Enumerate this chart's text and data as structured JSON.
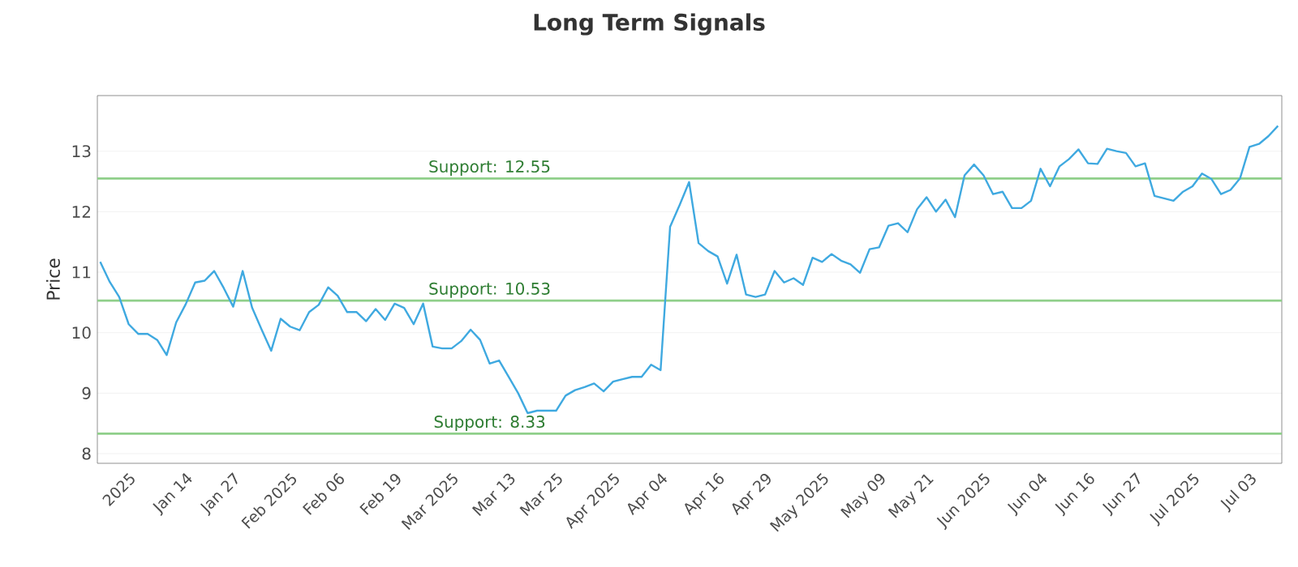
{
  "chart_data": {
    "type": "line",
    "title": "Long Term Signals",
    "ylabel": "Price",
    "categories": [
      null,
      null,
      null,
      "2025",
      null,
      null,
      null,
      null,
      null,
      "Jan 14",
      null,
      null,
      null,
      null,
      "Jan 27",
      null,
      null,
      null,
      null,
      null,
      "Feb 2025",
      null,
      null,
      null,
      null,
      "Feb 06",
      null,
      null,
      null,
      null,
      null,
      "Feb 19",
      null,
      null,
      null,
      null,
      null,
      "Mar 2025",
      null,
      null,
      null,
      null,
      null,
      "Mar 13",
      null,
      null,
      null,
      null,
      "Mar 25",
      null,
      null,
      null,
      null,
      null,
      "Apr 2025",
      null,
      null,
      null,
      null,
      "Apr 04",
      null,
      null,
      null,
      null,
      null,
      "Apr 16",
      null,
      null,
      null,
      null,
      "Apr 29",
      null,
      null,
      null,
      null,
      null,
      "May 2025",
      null,
      null,
      null,
      null,
      null,
      "May 09",
      null,
      null,
      null,
      null,
      "May 21",
      null,
      null,
      null,
      null,
      null,
      "Jun 2025",
      null,
      null,
      null,
      null,
      null,
      "Jun 04",
      null,
      null,
      null,
      null,
      "Jun 16",
      null,
      null,
      null,
      null,
      "Jun 27",
      null,
      null,
      null,
      null,
      null,
      "Jul 2025",
      null,
      null,
      null,
      null,
      null,
      "Jul 03",
      null,
      null,
      null
    ],
    "series": [
      {
        "color": "#3fa9e0",
        "values": [
          11.17,
          10.84,
          10.59,
          10.14,
          9.98,
          9.98,
          9.88,
          9.63,
          10.17,
          10.47,
          10.83,
          10.86,
          11.02,
          10.74,
          10.43,
          11.02,
          10.41,
          10.05,
          9.7,
          10.23,
          10.1,
          10.04,
          10.34,
          10.46,
          10.75,
          10.61,
          10.34,
          10.34,
          10.19,
          10.39,
          10.21,
          10.48,
          10.41,
          10.14,
          10.48,
          9.77,
          9.74,
          9.74,
          9.86,
          10.05,
          9.88,
          9.49,
          9.54,
          9.27,
          9.0,
          8.67,
          8.71,
          8.71,
          8.71,
          8.96,
          9.05,
          9.1,
          9.16,
          9.03,
          9.19,
          9.23,
          9.27,
          9.27,
          9.47,
          9.38,
          11.75,
          12.11,
          12.49,
          11.48,
          11.35,
          11.26,
          10.81,
          11.29,
          10.63,
          10.59,
          10.63,
          11.02,
          10.83,
          10.9,
          10.79,
          11.24,
          11.17,
          11.3,
          11.19,
          11.13,
          10.99,
          11.38,
          11.41,
          11.77,
          11.81,
          11.66,
          12.04,
          12.24,
          12.0,
          12.2,
          11.91,
          12.6,
          12.78,
          12.6,
          12.29,
          12.33,
          12.06,
          12.06,
          12.18,
          12.71,
          12.42,
          12.75,
          12.87,
          13.03,
          12.8,
          12.79,
          13.04,
          13.0,
          12.97,
          12.75,
          12.8,
          12.26,
          12.22,
          12.18,
          12.33,
          12.42,
          12.63,
          12.54,
          12.29,
          12.36,
          12.55,
          13.07,
          13.12,
          13.25,
          13.42
        ]
      }
    ],
    "ylim": [
      7.84,
      13.92
    ],
    "yticks": [
      8,
      9,
      10,
      11,
      12,
      13
    ],
    "grid": "y",
    "ref_lines": [
      {
        "axis": "y",
        "value": 12.55,
        "label": "Support: 12.55",
        "color": "#8fcf8a"
      },
      {
        "axis": "y",
        "value": 10.53,
        "label": "Support: 10.53",
        "color": "#8fcf8a"
      },
      {
        "axis": "y",
        "value": 8.33,
        "label": "Support: 8.33",
        "color": "#8fcf8a"
      }
    ]
  }
}
